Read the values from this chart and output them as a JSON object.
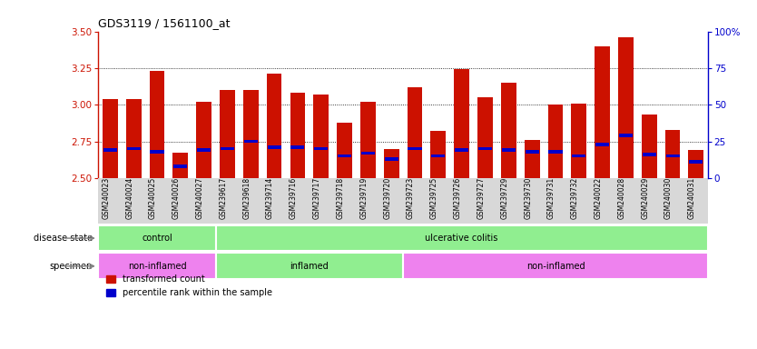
{
  "title": "GDS3119 / 1561100_at",
  "samples": [
    "GSM240023",
    "GSM240024",
    "GSM240025",
    "GSM240026",
    "GSM240027",
    "GSM239617",
    "GSM239618",
    "GSM239714",
    "GSM239716",
    "GSM239717",
    "GSM239718",
    "GSM239719",
    "GSM239720",
    "GSM239723",
    "GSM239725",
    "GSM239726",
    "GSM239727",
    "GSM239729",
    "GSM239730",
    "GSM239731",
    "GSM239732",
    "GSM240022",
    "GSM240028",
    "GSM240029",
    "GSM240030",
    "GSM240031"
  ],
  "bar_values": [
    3.04,
    3.04,
    3.23,
    2.67,
    3.02,
    3.1,
    3.1,
    3.21,
    3.08,
    3.07,
    2.88,
    3.02,
    2.7,
    3.12,
    2.82,
    3.24,
    3.05,
    3.15,
    2.76,
    3.0,
    3.01,
    3.4,
    3.46,
    2.93,
    2.83,
    2.69
  ],
  "blue_marker_values": [
    2.69,
    2.7,
    2.68,
    2.58,
    2.69,
    2.7,
    2.75,
    2.71,
    2.71,
    2.7,
    2.65,
    2.67,
    2.63,
    2.7,
    2.65,
    2.69,
    2.7,
    2.69,
    2.68,
    2.68,
    2.65,
    2.73,
    2.79,
    2.66,
    2.65,
    2.61
  ],
  "ymin": 2.5,
  "ymax": 3.5,
  "yticks": [
    2.5,
    2.75,
    3.0,
    3.25,
    3.5
  ],
  "y2ticks": [
    0,
    25,
    50,
    75,
    100
  ],
  "bar_color": "#CC1100",
  "blue_color": "#0000CC",
  "grid_color": "#000000",
  "disease_state_groups": [
    {
      "label": "control",
      "start": 0,
      "end": 5,
      "color": "#90EE90"
    },
    {
      "label": "ulcerative colitis",
      "start": 5,
      "end": 26,
      "color": "#90EE90"
    }
  ],
  "specimen_groups": [
    {
      "label": "non-inflamed",
      "start": 0,
      "end": 5,
      "color": "#EE82EE"
    },
    {
      "label": "inflamed",
      "start": 5,
      "end": 13,
      "color": "#90EE90"
    },
    {
      "label": "non-inflamed",
      "start": 13,
      "end": 26,
      "color": "#EE82EE"
    }
  ],
  "plot_bg_color": "#FFFFFF",
  "xticklabel_bg": "#D8D8D8"
}
